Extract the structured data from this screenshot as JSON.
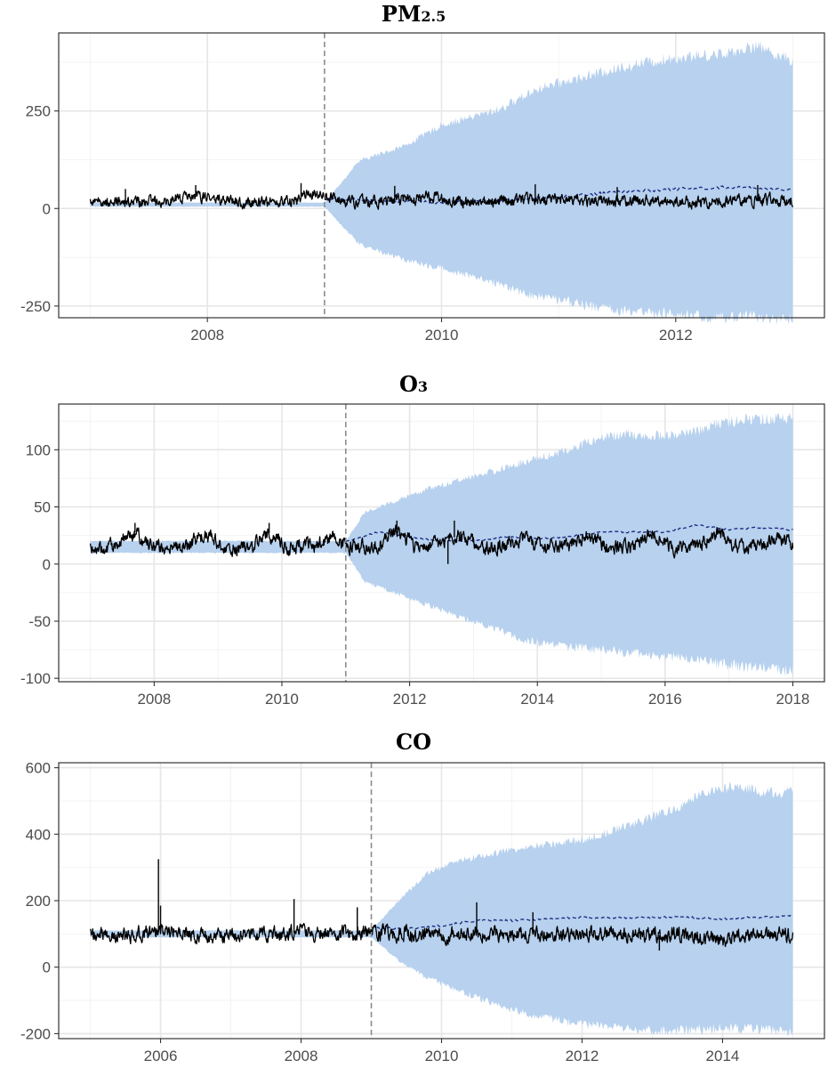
{
  "colors": {
    "band": "#b7d1ee",
    "observed": "#000000",
    "predicted": "#1a237e",
    "cutoff": "#8c8c8c"
  },
  "chart_data": [
    {
      "type": "line",
      "title_main": "PM",
      "title_sub": "2.5",
      "x_range": [
        2007.0,
        2013.0
      ],
      "y_range": [
        -250,
        400
      ],
      "x_ticks": [
        2008,
        2010,
        2012
      ],
      "y_ticks": [
        -250,
        0,
        250
      ],
      "grid": true,
      "cutoff_year": 2009.0,
      "observed_mean": [
        [
          2007.0,
          15
        ],
        [
          2007.5,
          18
        ],
        [
          2007.9,
          30
        ],
        [
          2008.3,
          14
        ],
        [
          2008.7,
          20
        ],
        [
          2008.9,
          40
        ],
        [
          2009.2,
          15
        ],
        [
          2009.6,
          20
        ],
        [
          2009.9,
          30
        ],
        [
          2010.3,
          14
        ],
        [
          2010.8,
          25
        ],
        [
          2011.2,
          18
        ],
        [
          2011.8,
          20
        ],
        [
          2012.3,
          16
        ],
        [
          2012.8,
          22
        ],
        [
          2013.0,
          14
        ]
      ],
      "observed_amp": 14,
      "observed_spikes": [
        [
          2007.3,
          50
        ],
        [
          2007.9,
          60
        ],
        [
          2008.8,
          65
        ],
        [
          2009.6,
          58
        ],
        [
          2010.8,
          62
        ],
        [
          2011.5,
          55
        ],
        [
          2012.7,
          60
        ]
      ],
      "predicted": [
        [
          2009.0,
          25
        ],
        [
          2009.5,
          20
        ],
        [
          2010.0,
          15
        ],
        [
          2010.5,
          20
        ],
        [
          2011.0,
          30
        ],
        [
          2011.5,
          42
        ],
        [
          2012.0,
          50
        ],
        [
          2012.5,
          55
        ],
        [
          2013.0,
          48
        ]
      ],
      "band_upper": [
        [
          2007.0,
          15
        ],
        [
          2009.0,
          15
        ],
        [
          2009.3,
          120
        ],
        [
          2009.7,
          160
        ],
        [
          2010.0,
          210
        ],
        [
          2010.5,
          250
        ],
        [
          2010.8,
          300
        ],
        [
          2011.2,
          330
        ],
        [
          2011.6,
          360
        ],
        [
          2012.0,
          380
        ],
        [
          2012.4,
          390
        ],
        [
          2012.7,
          410
        ],
        [
          2013.0,
          370
        ]
      ],
      "band_lower": [
        [
          2007.0,
          5
        ],
        [
          2009.0,
          5
        ],
        [
          2009.3,
          -90
        ],
        [
          2009.7,
          -130
        ],
        [
          2010.0,
          -150
        ],
        [
          2010.5,
          -190
        ],
        [
          2010.8,
          -220
        ],
        [
          2011.2,
          -240
        ],
        [
          2011.6,
          -260
        ],
        [
          2012.0,
          -265
        ],
        [
          2012.4,
          -275
        ],
        [
          2012.7,
          -270
        ],
        [
          2013.0,
          -280
        ]
      ]
    },
    {
      "type": "line",
      "title_main": "O",
      "title_sub": "3",
      "x_range": [
        2007.0,
        2018.0
      ],
      "y_range": [
        -100,
        130
      ],
      "x_ticks": [
        2008,
        2010,
        2012,
        2014,
        2016,
        2018
      ],
      "y_ticks": [
        -100,
        -50,
        0,
        50,
        100
      ],
      "grid": true,
      "cutoff_year": 2011.0,
      "observed_mean": [
        [
          2007.0,
          14
        ],
        [
          2007.3,
          15
        ],
        [
          2007.7,
          28
        ],
        [
          2008.0,
          14
        ],
        [
          2008.4,
          14
        ],
        [
          2008.8,
          25
        ],
        [
          2009.1,
          14
        ],
        [
          2009.5,
          14
        ],
        [
          2009.8,
          27
        ],
        [
          2010.1,
          14
        ],
        [
          2010.5,
          16
        ],
        [
          2010.8,
          24
        ],
        [
          2011.1,
          14
        ],
        [
          2011.5,
          16
        ],
        [
          2011.8,
          30
        ],
        [
          2012.1,
          14
        ],
        [
          2012.5,
          18
        ],
        [
          2012.8,
          26
        ],
        [
          2013.1,
          14
        ],
        [
          2013.5,
          16
        ],
        [
          2013.8,
          22
        ],
        [
          2014.1,
          14
        ],
        [
          2014.5,
          16
        ],
        [
          2014.8,
          26
        ],
        [
          2015.1,
          14
        ],
        [
          2015.5,
          16
        ],
        [
          2015.8,
          28
        ],
        [
          2016.1,
          14
        ],
        [
          2016.5,
          16
        ],
        [
          2016.8,
          28
        ],
        [
          2017.1,
          14
        ],
        [
          2017.5,
          16
        ],
        [
          2017.8,
          22
        ],
        [
          2018.0,
          18
        ]
      ],
      "observed_amp": 6,
      "observed_spikes": [
        [
          2007.7,
          36
        ],
        [
          2009.8,
          36
        ],
        [
          2011.8,
          38
        ],
        [
          2012.7,
          38
        ],
        [
          2012.6,
          0
        ]
      ],
      "predicted": [
        [
          2011.0,
          20
        ],
        [
          2011.5,
          28
        ],
        [
          2012.0,
          24
        ],
        [
          2012.5,
          20
        ],
        [
          2013.0,
          20
        ],
        [
          2013.5,
          24
        ],
        [
          2014.0,
          22
        ],
        [
          2014.5,
          24
        ],
        [
          2015.0,
          28
        ],
        [
          2015.5,
          28
        ],
        [
          2016.0,
          28
        ],
        [
          2016.5,
          34
        ],
        [
          2017.0,
          30
        ],
        [
          2017.5,
          32
        ],
        [
          2018.0,
          30
        ]
      ],
      "band_upper": [
        [
          2007.0,
          20
        ],
        [
          2011.0,
          20
        ],
        [
          2011.3,
          45
        ],
        [
          2011.8,
          55
        ],
        [
          2012.3,
          65
        ],
        [
          2012.8,
          72
        ],
        [
          2013.3,
          80
        ],
        [
          2013.8,
          88
        ],
        [
          2014.3,
          95
        ],
        [
          2014.8,
          105
        ],
        [
          2015.3,
          112
        ],
        [
          2015.8,
          110
        ],
        [
          2016.3,
          112
        ],
        [
          2016.8,
          120
        ],
        [
          2017.3,
          125
        ],
        [
          2017.8,
          125
        ],
        [
          2018.0,
          125
        ]
      ],
      "band_lower": [
        [
          2007.0,
          10
        ],
        [
          2011.0,
          10
        ],
        [
          2011.3,
          -15
        ],
        [
          2011.8,
          -25
        ],
        [
          2012.3,
          -35
        ],
        [
          2012.8,
          -45
        ],
        [
          2013.3,
          -55
        ],
        [
          2013.8,
          -65
        ],
        [
          2014.3,
          -70
        ],
        [
          2014.8,
          -72
        ],
        [
          2015.3,
          -75
        ],
        [
          2015.8,
          -78
        ],
        [
          2016.3,
          -80
        ],
        [
          2016.8,
          -85
        ],
        [
          2017.3,
          -88
        ],
        [
          2017.8,
          -90
        ],
        [
          2018.0,
          -92
        ]
      ]
    },
    {
      "type": "line",
      "title_main": "CO",
      "title_sub": "",
      "x_range": [
        2005.0,
        2015.0
      ],
      "y_range": [
        -200,
        600
      ],
      "x_ticks": [
        2006,
        2008,
        2010,
        2012,
        2014
      ],
      "y_ticks": [
        -200,
        0,
        200,
        400,
        600
      ],
      "grid": true,
      "cutoff_year": 2009.0,
      "observed_mean": [
        [
          2005.0,
          100
        ],
        [
          2005.5,
          95
        ],
        [
          2006.0,
          110
        ],
        [
          2006.5,
          95
        ],
        [
          2007.0,
          100
        ],
        [
          2007.5,
          95
        ],
        [
          2008.0,
          105
        ],
        [
          2008.5,
          100
        ],
        [
          2009.0,
          105
        ],
        [
          2009.5,
          100
        ],
        [
          2010.0,
          95
        ],
        [
          2010.5,
          105
        ],
        [
          2011.0,
          95
        ],
        [
          2011.5,
          100
        ],
        [
          2012.0,
          100
        ],
        [
          2012.5,
          105
        ],
        [
          2013.0,
          95
        ],
        [
          2013.5,
          100
        ],
        [
          2014.0,
          85
        ],
        [
          2014.5,
          95
        ],
        [
          2015.0,
          100
        ]
      ],
      "observed_amp": 22,
      "observed_spikes": [
        [
          2005.97,
          325
        ],
        [
          2006.0,
          185
        ],
        [
          2007.9,
          205
        ],
        [
          2008.8,
          180
        ],
        [
          2010.5,
          195
        ],
        [
          2011.3,
          165
        ],
        [
          2013.1,
          50
        ]
      ],
      "predicted": [
        [
          2009.0,
          120
        ],
        [
          2009.5,
          115
        ],
        [
          2010.0,
          125
        ],
        [
          2010.5,
          140
        ],
        [
          2011.0,
          140
        ],
        [
          2011.5,
          145
        ],
        [
          2012.0,
          150
        ],
        [
          2012.5,
          148
        ],
        [
          2013.0,
          150
        ],
        [
          2013.5,
          150
        ],
        [
          2014.0,
          145
        ],
        [
          2014.5,
          150
        ],
        [
          2015.0,
          155
        ]
      ],
      "band_upper": [
        [
          2005.0,
          110
        ],
        [
          2009.0,
          110
        ],
        [
          2009.4,
          200
        ],
        [
          2009.8,
          280
        ],
        [
          2010.3,
          320
        ],
        [
          2010.8,
          340
        ],
        [
          2011.3,
          360
        ],
        [
          2011.8,
          370
        ],
        [
          2012.3,
          395
        ],
        [
          2012.8,
          430
        ],
        [
          2013.3,
          470
        ],
        [
          2013.8,
          520
        ],
        [
          2014.2,
          540
        ],
        [
          2014.6,
          520
        ],
        [
          2015.0,
          520
        ]
      ],
      "band_lower": [
        [
          2005.0,
          90
        ],
        [
          2009.0,
          90
        ],
        [
          2009.4,
          20
        ],
        [
          2009.8,
          -30
        ],
        [
          2010.3,
          -70
        ],
        [
          2010.8,
          -110
        ],
        [
          2011.3,
          -140
        ],
        [
          2011.8,
          -160
        ],
        [
          2012.3,
          -170
        ],
        [
          2012.8,
          -180
        ],
        [
          2013.3,
          -185
        ],
        [
          2013.8,
          -180
        ],
        [
          2014.2,
          -178
        ],
        [
          2014.6,
          -180
        ],
        [
          2015.0,
          -190
        ]
      ]
    }
  ]
}
